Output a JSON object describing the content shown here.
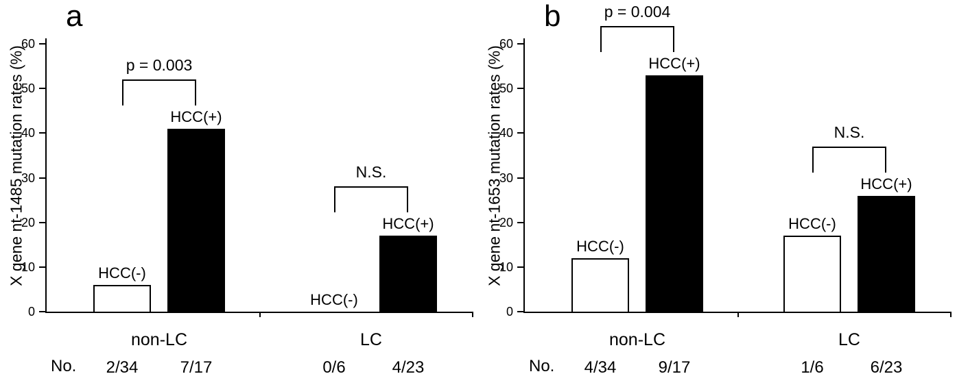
{
  "figure": {
    "background": "#ffffff",
    "axis_color": "#000000",
    "bar_colors": {
      "hcc_negative": "#ffffff",
      "hcc_positive": "#000000"
    }
  },
  "chart_data": [
    {
      "type": "bar",
      "panel_label": "a",
      "ylabel": "X gene nt-1485 mutation rates (%)",
      "xlabel": "",
      "ylim": [
        0,
        60
      ],
      "yticks": [
        0,
        10,
        20,
        30,
        40,
        50,
        60
      ],
      "grid": "off",
      "legend": "none",
      "no_label": "No.",
      "groups": [
        {
          "label": "non-LC",
          "significance": "p = 0.003",
          "bars": [
            {
              "label": "HCC(-)",
              "value": 6,
              "count": "2/34",
              "fill": "white"
            },
            {
              "label": "HCC(+)",
              "value": 41,
              "count": "7/17",
              "fill": "black"
            }
          ]
        },
        {
          "label": "LC",
          "significance": "N.S.",
          "bars": [
            {
              "label": "HCC(-)",
              "value": 0,
              "count": "0/6",
              "fill": "white"
            },
            {
              "label": "HCC(+)",
              "value": 17,
              "count": "4/23",
              "fill": "black"
            }
          ]
        }
      ]
    },
    {
      "type": "bar",
      "panel_label": "b",
      "ylabel": "X gene nt-1653 mutation rates (%)",
      "xlabel": "",
      "ylim": [
        0,
        60
      ],
      "yticks": [
        0,
        10,
        20,
        30,
        40,
        50,
        60
      ],
      "grid": "off",
      "legend": "none",
      "no_label": "No.",
      "groups": [
        {
          "label": "non-LC",
          "significance": "p = 0.004",
          "bars": [
            {
              "label": "HCC(-)",
              "value": 12,
              "count": "4/34",
              "fill": "white"
            },
            {
              "label": "HCC(+)",
              "value": 53,
              "count": "9/17",
              "fill": "black"
            }
          ]
        },
        {
          "label": "LC",
          "significance": "N.S.",
          "bars": [
            {
              "label": "HCC(-)",
              "value": 17,
              "count": "1/6",
              "fill": "white"
            },
            {
              "label": "HCC(+)",
              "value": 26,
              "count": "6/23",
              "fill": "black"
            }
          ]
        }
      ]
    }
  ]
}
